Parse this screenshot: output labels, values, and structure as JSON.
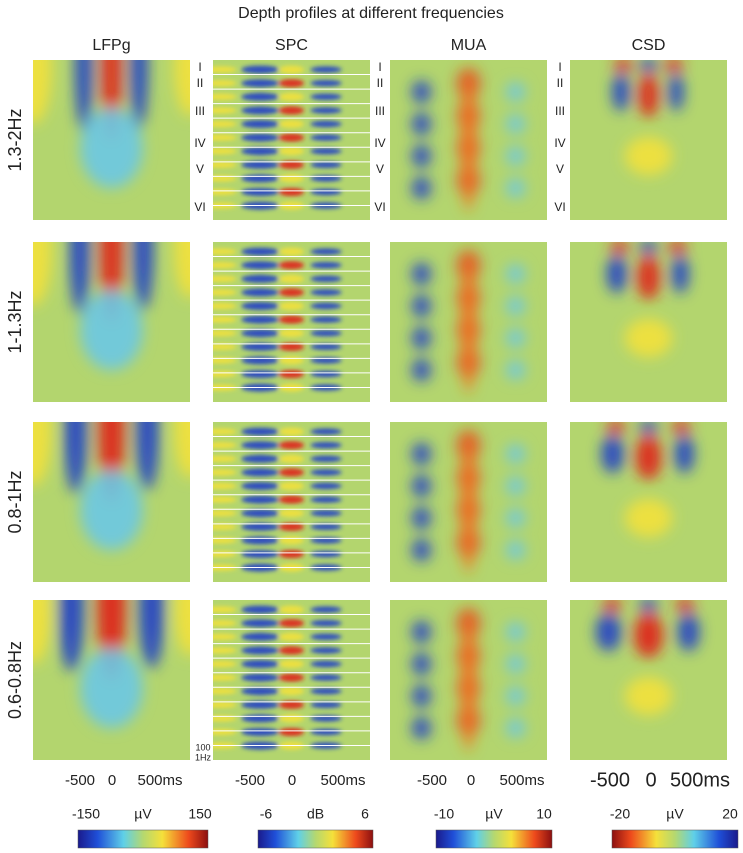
{
  "title": "Depth profiles at different frequencies",
  "columns": [
    "LFPg",
    "SPC",
    "MUA",
    "CSD"
  ],
  "rows": [
    "1.3-2Hz",
    "1-1.3Hz",
    "0.8-1Hz",
    "0.6-0.8Hz"
  ],
  "layers": [
    "I",
    "II",
    "III",
    "IV",
    "V",
    "VI"
  ],
  "x_ticks": [
    [
      "-500",
      "0",
      "500ms"
    ],
    [
      "-500",
      "0",
      "500ms"
    ],
    [
      "-500",
      "0",
      "500ms"
    ],
    [
      "-500",
      "0",
      "500ms"
    ]
  ],
  "spc_scale": [
    "100",
    "1Hz"
  ],
  "colorbars": [
    {
      "min": "-150",
      "unit": "µV",
      "max": "150"
    },
    {
      "min": "-6",
      "unit": "dB",
      "max": "6"
    },
    {
      "min": "-10",
      "unit": "µV",
      "max": "10"
    },
    {
      "min": "-20",
      "unit": "µV",
      "max": "20"
    }
  ]
}
